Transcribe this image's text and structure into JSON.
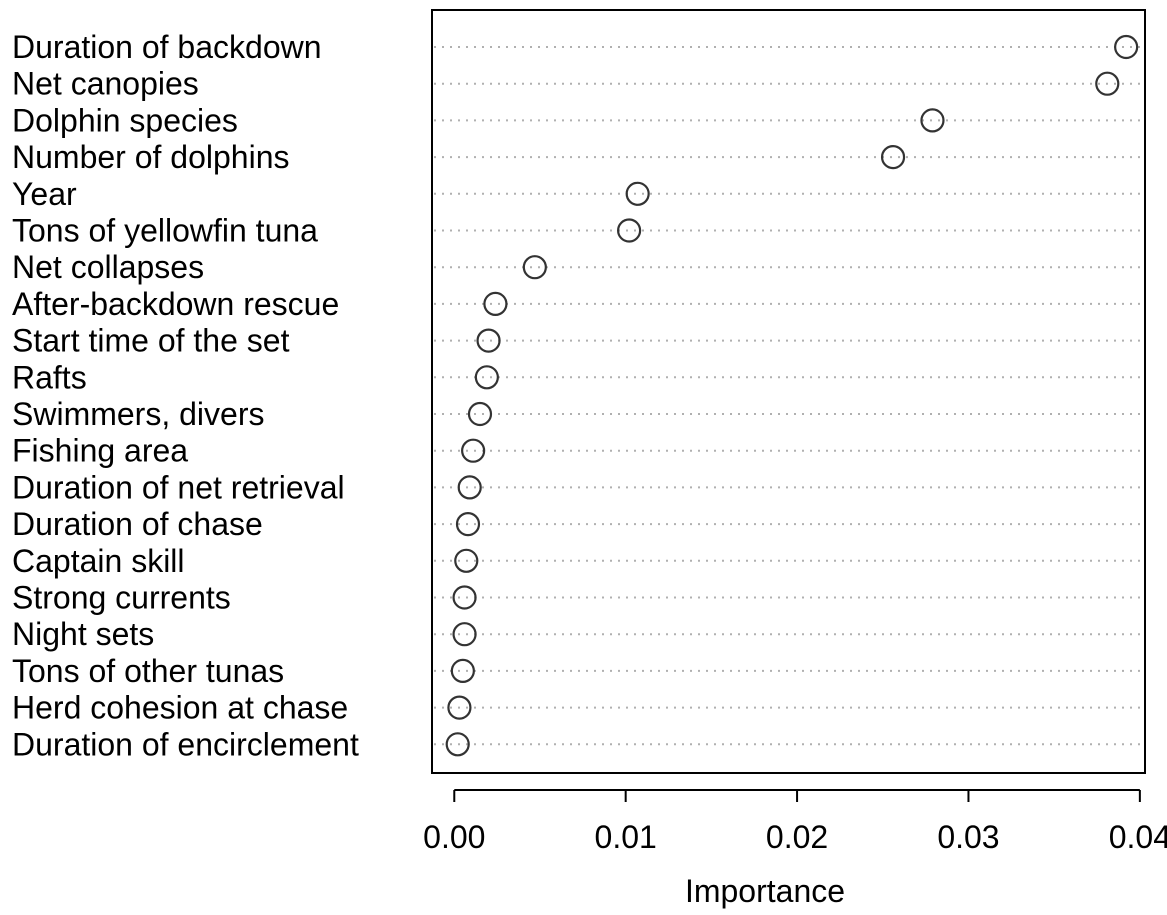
{
  "chart_data": {
    "type": "scatter",
    "subtype": "dotchart",
    "title": "",
    "xlabel": "Importance",
    "ylabel": "",
    "xlim": [
      -0.0013,
      0.0403
    ],
    "xticks": [
      0.0,
      0.01,
      0.02,
      0.03,
      0.04
    ],
    "xtick_labels": [
      "0.00",
      "0.01",
      "0.02",
      "0.03",
      "0.04"
    ],
    "grid": "dotted horizontal guide lines",
    "marker": "open circle",
    "categories": [
      "Duration of backdown",
      "Net canopies",
      "Dolphin species",
      "Number of dolphins",
      "Year",
      "Tons of yellowfin tuna",
      "Net collapses",
      "After-backdown rescue",
      "Start time of the set",
      "Rafts",
      "Swimmers, divers",
      "Fishing area",
      "Duration of net retrieval",
      "Duration of chase",
      "Captain skill",
      "Strong currents",
      "Night sets",
      "Tons of other tunas",
      "Herd cohesion at chase",
      "Duration of encirclement"
    ],
    "values": [
      0.0392,
      0.0381,
      0.0279,
      0.0256,
      0.0107,
      0.0102,
      0.0047,
      0.0024,
      0.002,
      0.0019,
      0.0015,
      0.0011,
      0.0009,
      0.0008,
      0.0007,
      0.0006,
      0.0006,
      0.0005,
      0.0003,
      0.0002
    ]
  }
}
